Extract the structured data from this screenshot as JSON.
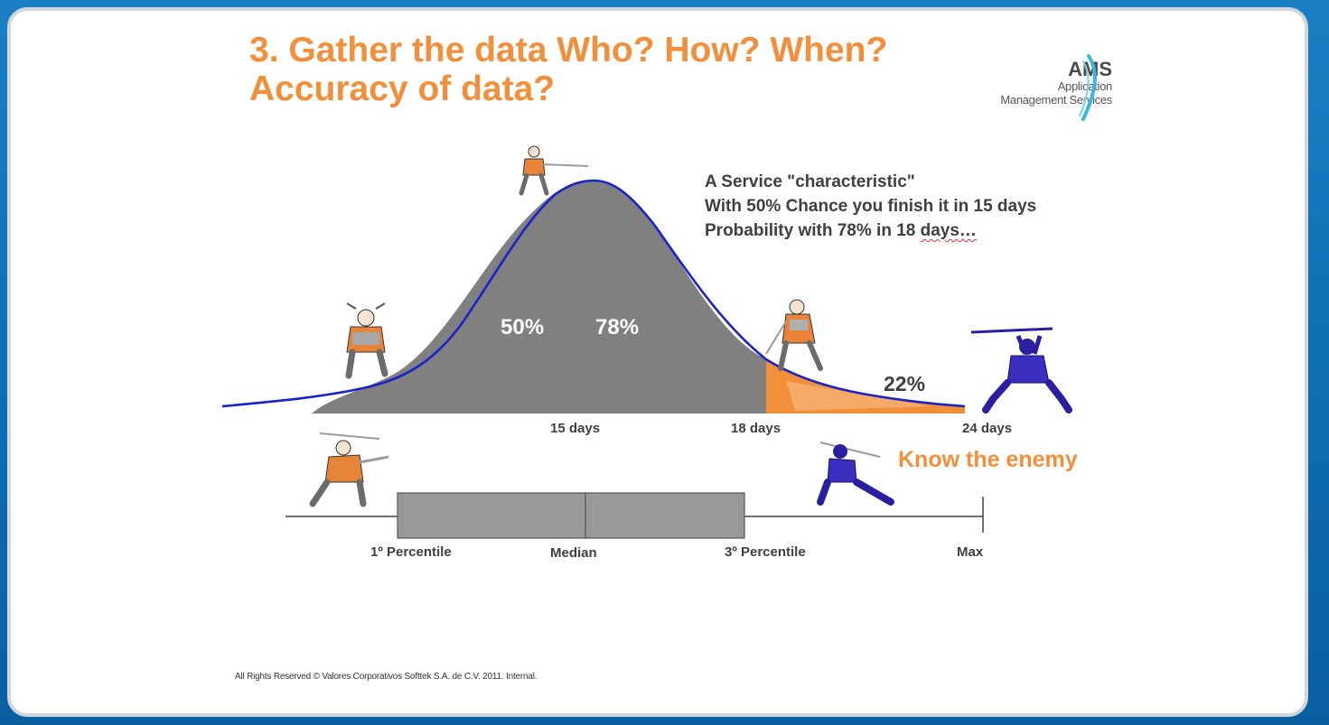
{
  "title": {
    "line1": "3. Gather the data Who? How? When?",
    "line2": "Accuracy of data?"
  },
  "logo": {
    "name": "AMS",
    "line1": "Application",
    "line2": "Management Services"
  },
  "description": {
    "line1": "A Service \"characteristic\"",
    "line2": "With 50% Chance you finish it in 15 days",
    "line3_main": "Probability with 78% in 18 ",
    "line3_end": "days…"
  },
  "curve": {
    "label_50": "50%",
    "label_78": "78%",
    "label_22": "22%",
    "axis_labels": [
      "15 days",
      "18 days",
      "24 days"
    ]
  },
  "boxplot": {
    "labels": [
      "1º Percentile",
      "Median",
      "3º Percentile",
      "Max"
    ]
  },
  "tagline": "Know the enemy",
  "footer": "All Rights Reserved © Valores Corporativos Softtek S.A. de C.V. 2011. Internal.",
  "colors": {
    "accent": "#f28f3b",
    "curve_fill": "#808080",
    "curve_line": "#1a22c9",
    "box_fill": "#999999",
    "ninja": "#2a1fa0"
  }
}
